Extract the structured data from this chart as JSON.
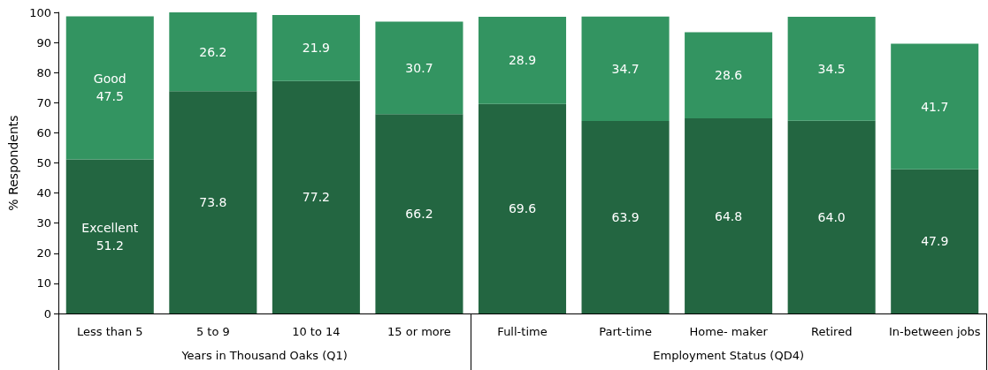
{
  "chart_data": {
    "type": "bar",
    "stacked": true,
    "categories": [
      "Less than 5",
      "5 to 9",
      "10 to 14",
      "15 or more",
      "Full-time",
      "Part-time",
      "Home- maker",
      "Retired",
      "In-between jobs"
    ],
    "series": [
      {
        "name": "Excellent",
        "color": "#236641",
        "values": [
          51.2,
          73.8,
          77.2,
          66.2,
          69.6,
          63.9,
          64.8,
          64.0,
          47.9
        ],
        "value_labels": [
          "51.2",
          "73.8",
          "77.2",
          "66.2",
          "69.6",
          "63.9",
          "64.8",
          "64.0",
          "47.9"
        ]
      },
      {
        "name": "Good",
        "color": "#339461",
        "values": [
          47.5,
          26.2,
          21.9,
          30.7,
          28.9,
          34.7,
          28.6,
          34.5,
          41.7
        ],
        "value_labels": [
          "47.5",
          "26.2",
          "21.9",
          "30.7",
          "28.9",
          "34.7",
          "28.6",
          "34.5",
          "41.7"
        ]
      }
    ],
    "ylabel": "% Respondents",
    "ylim": [
      0,
      100
    ],
    "yticks": [
      0,
      10,
      20,
      30,
      40,
      50,
      60,
      70,
      80,
      90,
      100
    ],
    "annotations": [
      "Years in Thousand Oaks (Q1)",
      "Employment Status (QD4)"
    ],
    "grid": false,
    "legend": false
  }
}
